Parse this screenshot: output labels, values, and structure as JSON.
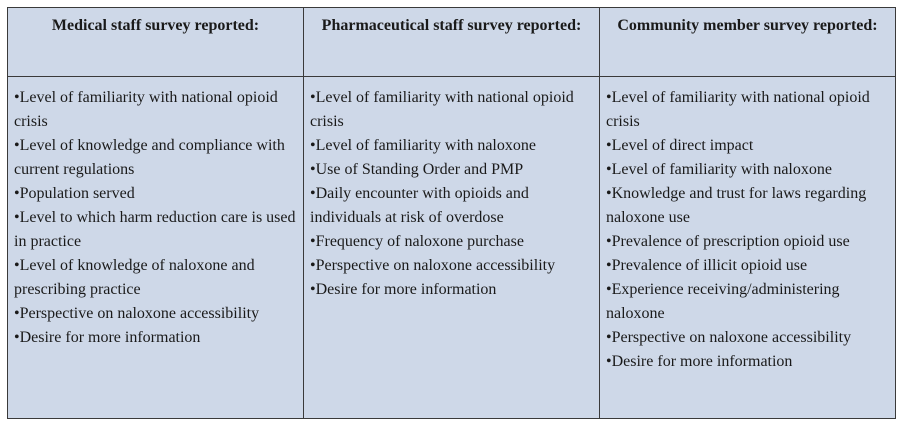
{
  "table": {
    "headers": [
      "Medical staff survey reported:",
      "Pharmaceutical staff survey reported:",
      "Community member survey reported:"
    ],
    "columns": [
      {
        "items": [
          "•Level of familiarity with national opioid crisis",
          "•Level of knowledge and compliance with current regulations",
          "•Population served",
          "•Level to which harm reduction care is used in practice",
          "•Level of knowledge of naloxone and prescribing practice",
          "•Perspective on naloxone accessibility",
          "•Desire for more information"
        ]
      },
      {
        "items": [
          "•Level of familiarity with national opioid crisis",
          "•Level of familiarity with naloxone",
          "•Use of Standing Order and PMP",
          "•Daily encounter with opioids and individuals at risk of overdose",
          "•Frequency of naloxone purchase",
          "•Perspective on naloxone accessibility",
          "•Desire for more information"
        ]
      },
      {
        "items": [
          "•Level of familiarity with national opioid crisis",
          "•Level of direct impact",
          "•Level of familiarity with naloxone",
          "•Knowledge and trust for laws regarding naloxone use",
          "•Prevalence of prescription opioid use",
          "•Prevalence of illicit opioid use",
          "•Experience receiving/administering naloxone",
          "•Perspective on naloxone accessibility",
          "•Desire for more information"
        ]
      }
    ]
  }
}
